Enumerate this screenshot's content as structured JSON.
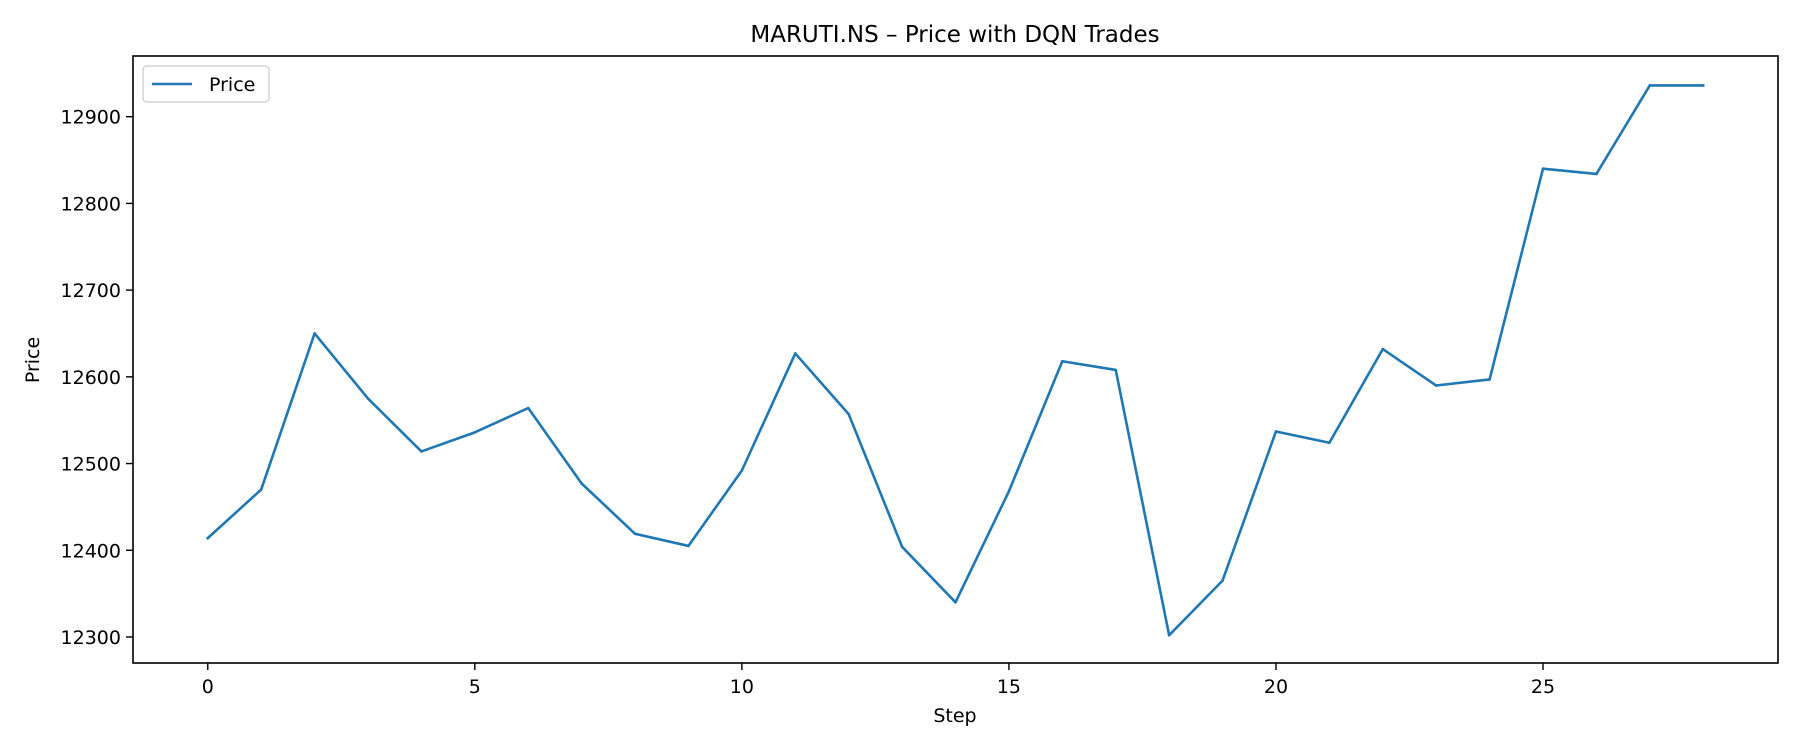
{
  "chart_data": {
    "type": "line",
    "title": "MARUTI.NS – Price with DQN Trades",
    "xlabel": "Step",
    "ylabel": "Price",
    "xlim": [
      -1.4,
      29.4
    ],
    "ylim": [
      12270,
      12970
    ],
    "xticks": [
      0,
      5,
      10,
      15,
      20,
      25
    ],
    "yticks": [
      12300,
      12400,
      12500,
      12600,
      12700,
      12800,
      12900
    ],
    "grid": false,
    "legend_position": "top-left",
    "series": [
      {
        "name": "Price",
        "color": "#1f77b4",
        "x": [
          0,
          1,
          2,
          3,
          4,
          5,
          6,
          7,
          8,
          9,
          10,
          11,
          12,
          13,
          14,
          15,
          16,
          17,
          18,
          19,
          20,
          21,
          22,
          23,
          24,
          25,
          26,
          27,
          28
        ],
        "y": [
          12414,
          12470,
          12650,
          12575,
          12514,
          12536,
          12564,
          12477,
          12419,
          12405,
          12492,
          12627,
          12557,
          12404,
          12340,
          12468,
          12618,
          12608,
          12302,
          12365,
          12537,
          12524,
          12632,
          12590,
          12597,
          12840,
          12834,
          12936,
          12936
        ]
      }
    ]
  }
}
